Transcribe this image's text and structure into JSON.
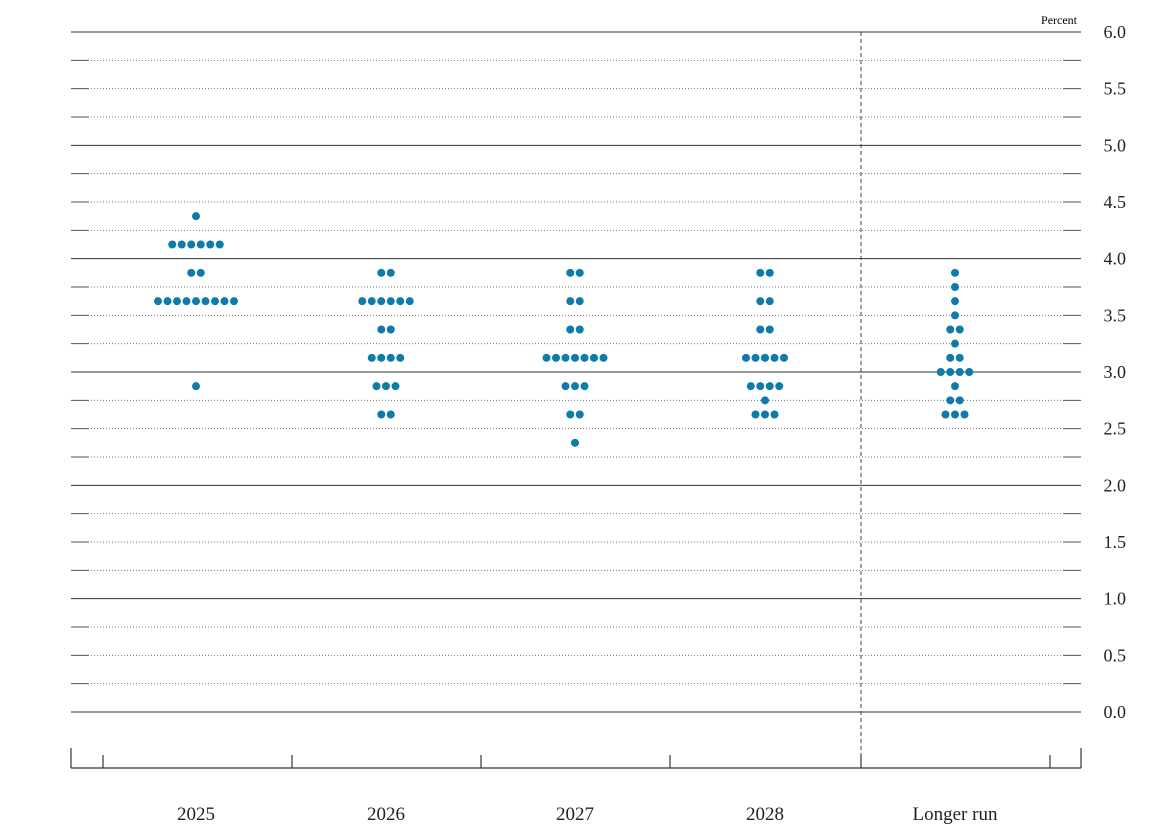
{
  "chart_data": {
    "type": "scatter",
    "unit_label": "Percent",
    "dot_color": "#0e7bab",
    "categories": [
      "2025",
      "2026",
      "2027",
      "2028",
      "Longer run"
    ],
    "ylim": [
      0.0,
      6.0
    ],
    "yticks": [
      "0.0",
      "0.5",
      "1.0",
      "1.5",
      "2.0",
      "2.5",
      "3.0",
      "3.5",
      "4.0",
      "4.5",
      "5.0",
      "5.5",
      "6.0"
    ],
    "separator_before": "Longer run",
    "grid": true,
    "dots": {
      "2025": [
        {
          "y": 4.375,
          "count": 1
        },
        {
          "y": 4.125,
          "count": 6
        },
        {
          "y": 3.875,
          "count": 2
        },
        {
          "y": 3.625,
          "count": 9
        },
        {
          "y": 2.875,
          "count": 1
        }
      ],
      "2026": [
        {
          "y": 3.875,
          "count": 2
        },
        {
          "y": 3.625,
          "count": 6
        },
        {
          "y": 3.375,
          "count": 2
        },
        {
          "y": 3.125,
          "count": 4
        },
        {
          "y": 2.875,
          "count": 3
        },
        {
          "y": 2.625,
          "count": 2
        }
      ],
      "2027": [
        {
          "y": 3.875,
          "count": 2
        },
        {
          "y": 3.625,
          "count": 2
        },
        {
          "y": 3.375,
          "count": 2
        },
        {
          "y": 3.125,
          "count": 7
        },
        {
          "y": 2.875,
          "count": 3
        },
        {
          "y": 2.625,
          "count": 2
        },
        {
          "y": 2.375,
          "count": 1
        }
      ],
      "2028": [
        {
          "y": 3.875,
          "count": 2
        },
        {
          "y": 3.625,
          "count": 2
        },
        {
          "y": 3.375,
          "count": 2
        },
        {
          "y": 3.125,
          "count": 5
        },
        {
          "y": 2.875,
          "count": 4
        },
        {
          "y": 2.75,
          "count": 1
        },
        {
          "y": 2.625,
          "count": 3
        }
      ],
      "Longer run": [
        {
          "y": 3.875,
          "count": 1
        },
        {
          "y": 3.75,
          "count": 1
        },
        {
          "y": 3.625,
          "count": 1
        },
        {
          "y": 3.5,
          "count": 1
        },
        {
          "y": 3.375,
          "count": 2
        },
        {
          "y": 3.25,
          "count": 1
        },
        {
          "y": 3.125,
          "count": 2
        },
        {
          "y": 3.0,
          "count": 4
        },
        {
          "y": 2.875,
          "count": 1
        },
        {
          "y": 2.75,
          "count": 2
        },
        {
          "y": 2.625,
          "count": 3
        }
      ]
    }
  }
}
